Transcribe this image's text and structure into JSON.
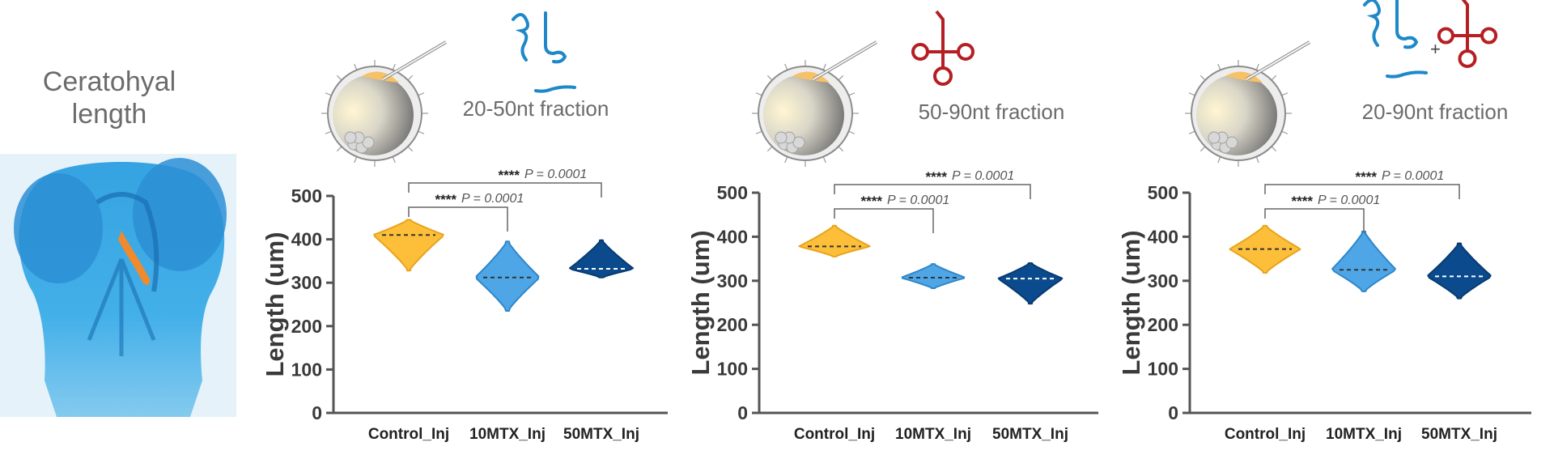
{
  "left_panel": {
    "title_line1": "Ceratohyal",
    "title_line2": "length"
  },
  "colors": {
    "control": "#FDBE3A",
    "control_edge": "#E8A41A",
    "mtx10": "#4FA6E6",
    "mtx10_edge": "#2F86C9",
    "mtx50": "#0B4A8C",
    "mtx50_edge": "#083B70",
    "rna_blue": "#1E88C8",
    "rna_red": "#B51F24",
    "axis": "#555555"
  },
  "chart_data": [
    {
      "type": "violin",
      "fraction_label": "20-50nt fraction",
      "ylabel": "Length (um)",
      "ylim": [
        0,
        500
      ],
      "yticks": [
        0,
        100,
        200,
        300,
        400,
        500
      ],
      "categories": [
        "Control_Inj",
        "10MTX_Inj",
        "50MTX_Inj"
      ],
      "medians": [
        410,
        312,
        332
      ],
      "ranges": [
        [
          328,
          445
        ],
        [
          235,
          395
        ],
        [
          312,
          398
        ]
      ],
      "comparisons": [
        {
          "from": "Control_Inj",
          "to": "10MTX_Inj",
          "stars": "****",
          "p": "P = 0.0001"
        },
        {
          "from": "Control_Inj",
          "to": "50MTX_Inj",
          "stars": "****",
          "p": "P = 0.0001"
        }
      ]
    },
    {
      "type": "violin",
      "fraction_label": "50-90nt fraction",
      "ylabel": "Length (um)",
      "ylim": [
        0,
        500
      ],
      "yticks": [
        0,
        100,
        200,
        300,
        400,
        500
      ],
      "categories": [
        "Control_Inj",
        "10MTX_Inj",
        "50MTX_Inj"
      ],
      "medians": [
        378,
        307,
        305
      ],
      "ranges": [
        [
          355,
          425
        ],
        [
          283,
          338
        ],
        [
          248,
          340
        ]
      ],
      "comparisons": [
        {
          "from": "Control_Inj",
          "to": "10MTX_Inj",
          "stars": "****",
          "p": "P = 0.0001"
        },
        {
          "from": "Control_Inj",
          "to": "50MTX_Inj",
          "stars": "****",
          "p": "P = 0.0001"
        }
      ]
    },
    {
      "type": "violin",
      "fraction_label": "20-90nt fraction",
      "ylabel": "Length (um)",
      "ylim": [
        0,
        500
      ],
      "yticks": [
        0,
        100,
        200,
        300,
        400,
        500
      ],
      "categories": [
        "Control_Inj",
        "10MTX_Inj",
        "50MTX_Inj"
      ],
      "medians": [
        372,
        325,
        310
      ],
      "ranges": [
        [
          318,
          425
        ],
        [
          276,
          412
        ],
        [
          260,
          385
        ]
      ],
      "comparisons": [
        {
          "from": "Control_Inj",
          "to": "10MTX_Inj",
          "stars": "****",
          "p": "P = 0.0001"
        },
        {
          "from": "Control_Inj",
          "to": "50MTX_Inj",
          "stars": "****",
          "p": "P = 0.0001"
        }
      ]
    }
  ]
}
